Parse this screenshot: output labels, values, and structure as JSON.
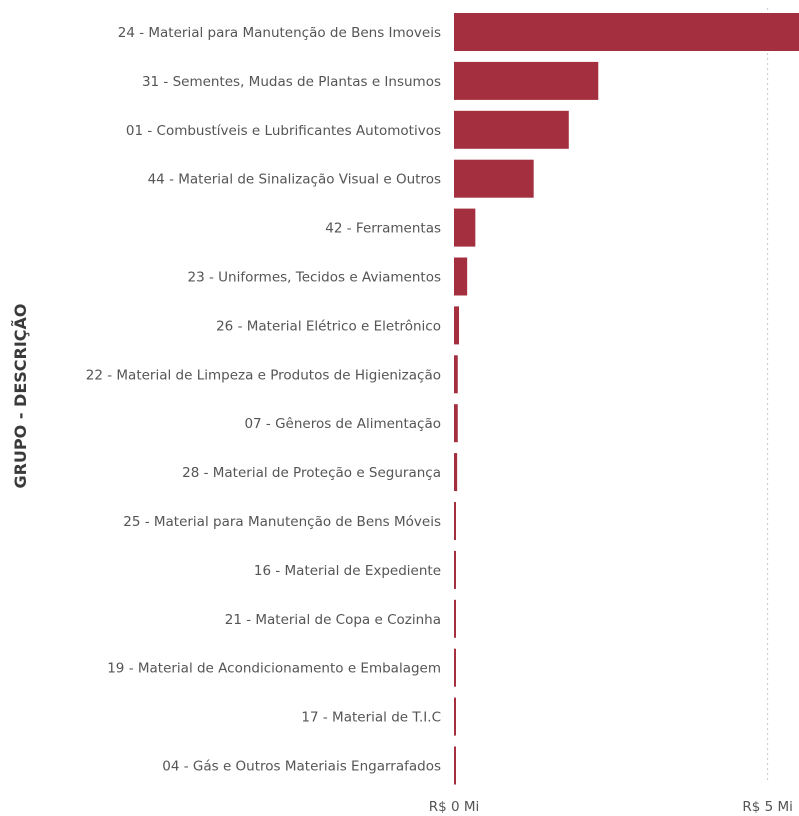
{
  "chart_data": {
    "type": "bar",
    "orientation": "horizontal",
    "title": "",
    "ylabel": "GRUPO - DESCRIÇÃO",
    "xlabel": "",
    "bar_color": "#a4303f",
    "grid": "vertical-dotted",
    "x_unit": "R$ Mi",
    "xlim": [
      0,
      5.5
    ],
    "x_ticks": [
      {
        "value": 0,
        "label": "R$ 0 Mi"
      },
      {
        "value": 5,
        "label": "R$ 5 Mi"
      }
    ],
    "categories": [
      "24 - Material para Manutenção de Bens Imoveis",
      "31 - Sementes, Mudas de Plantas e Insumos",
      "01 - Combustíveis e Lubrificantes Automotivos",
      "44 - Material de Sinalização Visual e Outros",
      "42 - Ferramentas",
      "23 - Uniformes, Tecidos e Aviamentos",
      "26 - Material Elétrico e Eletrônico",
      "22 - Material de Limpeza e Produtos de Higienização",
      "07 - Gêneros de Alimentação",
      "28 - Material de Proteção e Segurança",
      "25 - Material para Manutenção de Bens Móveis",
      "16 - Material de Expediente",
      "21 - Material de Copa e Cozinha",
      "19 - Material de Acondicionamento e Embalagem",
      "17 - Material de T.I.C",
      "04 - Gás e Outros Materiais Engarrafados"
    ],
    "values": [
      5.5,
      2.3,
      1.83,
      1.27,
      0.34,
      0.21,
      0.08,
      0.06,
      0.06,
      0.05,
      0.03,
      0.02,
      0.02,
      0.02,
      0.02,
      0.02
    ]
  }
}
